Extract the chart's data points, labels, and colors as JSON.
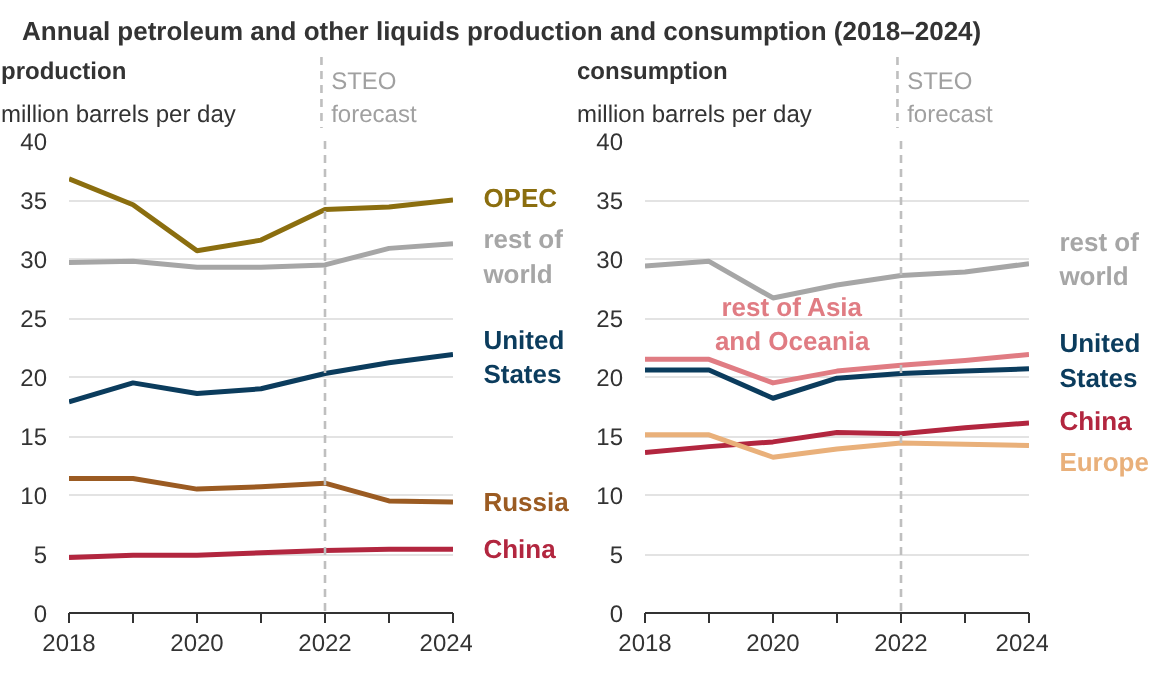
{
  "chart_data": [
    {
      "type": "line",
      "title": "Annual petroleum and other liquids production and consumption (2018–2024)",
      "subtitle": "production",
      "ylabel": "million barrels per day",
      "x": [
        2018,
        2019,
        2020,
        2021,
        2022,
        2023,
        2024
      ],
      "xlim": [
        2018,
        2024
      ],
      "ylim": [
        0,
        40
      ],
      "xticks": [
        2018,
        {
          "value": 2019,
          "label": null
        },
        2020,
        {
          "value": 2021,
          "label": null
        },
        2022,
        {
          "value": 2023,
          "label": null
        },
        2024
      ],
      "yticks": [
        0,
        5,
        10,
        15,
        20,
        25,
        30,
        35,
        40
      ],
      "grid": "y",
      "line_style": "solid",
      "ref_lines": [
        {
          "axis": "x",
          "value": 2022,
          "label": "STEO\nforecast",
          "color": "#bfbfbf",
          "line_style": "dashed"
        }
      ],
      "series": [
        {
          "name": "OPEC",
          "color": "#8b6e0f",
          "values": [
            36.8,
            34.6,
            30.7,
            31.6,
            34.2,
            34.4,
            35.0
          ]
        },
        {
          "name": "rest of\nworld",
          "color": "#a6a6a6",
          "values": [
            29.7,
            29.8,
            29.3,
            29.3,
            29.5,
            30.9,
            31.3
          ]
        },
        {
          "name": "United\nStates",
          "color": "#0b3c5d",
          "values": [
            17.9,
            19.5,
            18.6,
            19.0,
            20.3,
            21.2,
            21.9
          ]
        },
        {
          "name": "Russia",
          "color": "#9b5b22",
          "values": [
            11.4,
            11.4,
            10.5,
            10.7,
            11.0,
            9.5,
            9.4
          ]
        },
        {
          "name": "China",
          "color": "#b2263f",
          "values": [
            4.7,
            4.9,
            4.9,
            5.1,
            5.3,
            5.4,
            5.4
          ]
        }
      ]
    },
    {
      "type": "line",
      "subtitle": "consumption",
      "ylabel": "million barrels per day",
      "x": [
        2018,
        2019,
        2020,
        2021,
        2022,
        2023,
        2024
      ],
      "xlim": [
        2018,
        2024
      ],
      "ylim": [
        0,
        40
      ],
      "xticks": [
        2018,
        {
          "value": 2019,
          "label": null
        },
        2020,
        {
          "value": 2021,
          "label": null
        },
        2022,
        {
          "value": 2023,
          "label": null
        },
        2024
      ],
      "yticks": [
        0,
        5,
        10,
        15,
        20,
        25,
        30,
        35,
        40
      ],
      "grid": "y",
      "line_style": "solid",
      "ref_lines": [
        {
          "axis": "x",
          "value": 2022,
          "label": "STEO\nforecast",
          "color": "#bfbfbf",
          "line_style": "dashed"
        }
      ],
      "series": [
        {
          "name": "rest of\nworld",
          "color": "#a6a6a6",
          "values": [
            29.4,
            29.8,
            26.7,
            27.8,
            28.6,
            28.9,
            29.6
          ]
        },
        {
          "name": "rest of Asia\nand Oceania",
          "color": "#e07c83",
          "values": [
            21.5,
            21.5,
            19.5,
            20.5,
            21.0,
            21.4,
            21.9
          ]
        },
        {
          "name": "United\nStates",
          "color": "#0b3c5d",
          "values": [
            20.6,
            20.6,
            18.2,
            19.9,
            20.3,
            20.5,
            20.7
          ]
        },
        {
          "name": "China",
          "color": "#b2263f",
          "values": [
            13.6,
            14.1,
            14.5,
            15.3,
            15.2,
            15.7,
            16.1
          ]
        },
        {
          "name": "Europe",
          "color": "#e9b07a",
          "values": [
            15.1,
            15.1,
            13.2,
            13.9,
            14.4,
            14.3,
            14.2
          ]
        }
      ]
    }
  ]
}
